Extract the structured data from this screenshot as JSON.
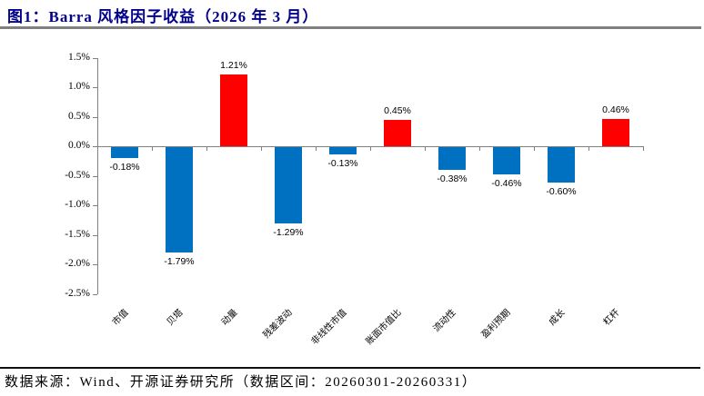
{
  "header": {
    "title": "图1：Barra 风格因子收益（2026 年 3 月）"
  },
  "chart_data": {
    "type": "bar",
    "title": "Barra 风格因子收益（2026 年 3 月）",
    "categories": [
      "市值",
      "贝塔",
      "动量",
      "残差波动",
      "非线性市值",
      "账面市值比",
      "流动性",
      "盈利预期",
      "成长",
      "杠杆"
    ],
    "values": [
      -0.18,
      -1.79,
      1.21,
      -1.29,
      -0.13,
      0.45,
      -0.38,
      -0.46,
      -0.6,
      0.46
    ],
    "value_labels": [
      "-0.18%",
      "-1.79%",
      "1.21%",
      "-1.29%",
      "-0.13%",
      "0.45%",
      "-0.38%",
      "-0.46%",
      "-0.60%",
      "0.46%"
    ],
    "y_tick_labels": [
      "1.5%",
      "1.0%",
      "0.5%",
      "0.0%",
      "-0.5%",
      "-1.0%",
      "-1.5%",
      "-2.0%",
      "-2.5%"
    ],
    "ylim": [
      -2.5,
      1.5
    ],
    "y_step": 0.5,
    "positive_color": "#ff0000",
    "negative_color": "#0070c0",
    "grid": false,
    "legend": "none",
    "xlabel": "",
    "ylabel": ""
  },
  "footer": {
    "source": "数据来源：Wind、开源证券研究所（数据区间：20260301-20260331）"
  }
}
